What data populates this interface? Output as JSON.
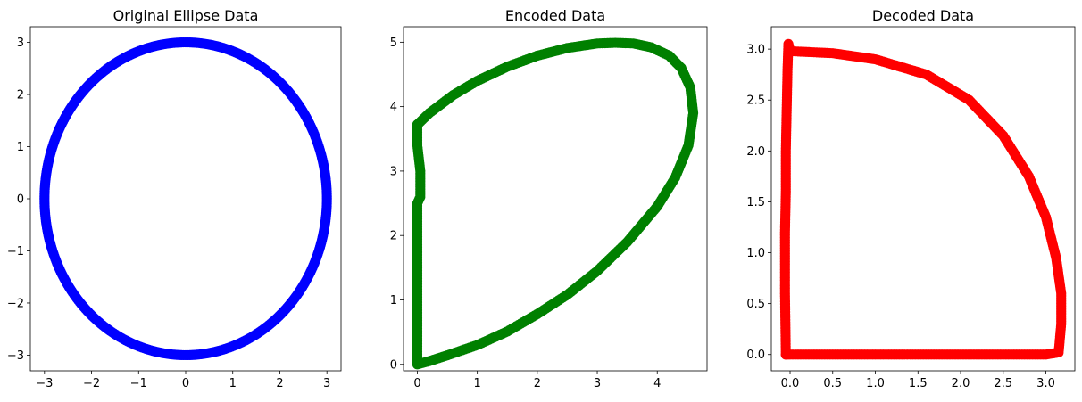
{
  "chart_data": [
    {
      "type": "scatter",
      "title": "Original Ellipse Data",
      "color": "#0000ff",
      "shape": "ellipse",
      "center": [
        0,
        0
      ],
      "radius_x": 3,
      "radius_y": 3,
      "xlim": [
        -3.3,
        3.3
      ],
      "ylim": [
        -3.3,
        3.3
      ],
      "xticks": [
        -3,
        -2,
        -1,
        0,
        1,
        2,
        3
      ],
      "xtick_labels": [
        "−3",
        "−2",
        "−1",
        "0",
        "1",
        "2",
        "3"
      ],
      "yticks": [
        -3,
        -2,
        -1,
        0,
        1,
        2,
        3
      ],
      "ytick_labels": [
        "−3",
        "−2",
        "−1",
        "0",
        "1",
        "2",
        "3"
      ],
      "xlabel": "",
      "ylabel": "",
      "grid": false
    },
    {
      "type": "scatter",
      "title": "Encoded Data",
      "color": "#008000",
      "shape": "outline",
      "outline_points": [
        [
          0.0,
          3.72
        ],
        [
          0.2,
          3.9
        ],
        [
          0.6,
          4.18
        ],
        [
          1.0,
          4.4
        ],
        [
          1.5,
          4.62
        ],
        [
          2.0,
          4.79
        ],
        [
          2.5,
          4.91
        ],
        [
          3.0,
          4.98
        ],
        [
          3.3,
          4.99
        ],
        [
          3.6,
          4.98
        ],
        [
          3.9,
          4.92
        ],
        [
          4.2,
          4.79
        ],
        [
          4.4,
          4.6
        ],
        [
          4.55,
          4.3
        ],
        [
          4.6,
          3.9
        ],
        [
          4.52,
          3.4
        ],
        [
          4.3,
          2.9
        ],
        [
          4.0,
          2.45
        ],
        [
          3.5,
          1.9
        ],
        [
          3.0,
          1.45
        ],
        [
          2.5,
          1.08
        ],
        [
          2.0,
          0.78
        ],
        [
          1.5,
          0.51
        ],
        [
          1.0,
          0.3
        ],
        [
          0.5,
          0.14
        ],
        [
          0.2,
          0.05
        ],
        [
          0.0,
          0.0
        ],
        [
          0.0,
          0.8
        ],
        [
          0.0,
          1.7
        ],
        [
          0.0,
          2.5
        ],
        [
          0.05,
          2.6
        ],
        [
          0.05,
          3.0
        ],
        [
          0.0,
          3.4
        ],
        [
          0.0,
          3.72
        ]
      ],
      "xlim": [
        -0.23,
        4.83
      ],
      "ylim": [
        -0.1,
        5.24
      ],
      "xticks": [
        0,
        1,
        2,
        3,
        4
      ],
      "xtick_labels": [
        "0",
        "1",
        "2",
        "3",
        "4"
      ],
      "yticks": [
        0,
        1,
        2,
        3,
        4,
        5
      ],
      "ytick_labels": [
        "0",
        "1",
        "2",
        "3",
        "4",
        "5"
      ],
      "xlabel": "",
      "ylabel": "",
      "grid": false
    },
    {
      "type": "scatter",
      "title": "Decoded Data",
      "color": "#ff0000",
      "shape": "outline",
      "outline_points": [
        [
          -0.05,
          0.0
        ],
        [
          0.0,
          0.0
        ],
        [
          0.5,
          0.0
        ],
        [
          1.0,
          0.0
        ],
        [
          1.5,
          0.0
        ],
        [
          2.0,
          0.0
        ],
        [
          2.5,
          0.0
        ],
        [
          3.0,
          0.0
        ],
        [
          3.15,
          0.02
        ],
        [
          3.18,
          0.3
        ],
        [
          3.18,
          0.6
        ],
        [
          3.12,
          0.95
        ],
        [
          3.0,
          1.35
        ],
        [
          2.8,
          1.75
        ],
        [
          2.5,
          2.15
        ],
        [
          2.1,
          2.5
        ],
        [
          1.6,
          2.75
        ],
        [
          1.0,
          2.9
        ],
        [
          0.5,
          2.96
        ],
        [
          0.0,
          2.98
        ],
        [
          -0.02,
          3.05
        ],
        [
          -0.03,
          2.8
        ],
        [
          -0.04,
          2.4
        ],
        [
          -0.05,
          2.0
        ],
        [
          -0.05,
          1.6
        ],
        [
          -0.06,
          1.2
        ],
        [
          -0.06,
          0.6
        ],
        [
          -0.05,
          0.0
        ]
      ],
      "xlim": [
        -0.22,
        3.34
      ],
      "ylim": [
        -0.16,
        3.22
      ],
      "xticks": [
        0,
        0.5,
        1,
        1.5,
        2,
        2.5,
        3
      ],
      "xtick_labels": [
        "0.0",
        "0.5",
        "1.0",
        "1.5",
        "2.0",
        "2.5",
        "3.0"
      ],
      "yticks": [
        0,
        0.5,
        1,
        1.5,
        2,
        2.5,
        3
      ],
      "ytick_labels": [
        "0.0",
        "0.5",
        "1.0",
        "1.5",
        "2.0",
        "2.5",
        "3.0"
      ],
      "xlabel": "",
      "ylabel": "",
      "grid": false
    }
  ]
}
